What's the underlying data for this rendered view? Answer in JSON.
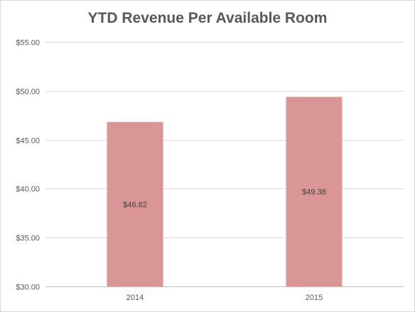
{
  "chart_data": {
    "type": "bar",
    "title": "YTD Revenue Per Available Room",
    "categories": [
      "2014",
      "2015"
    ],
    "values": [
      46.82,
      49.38
    ],
    "data_labels": [
      "$46.82",
      "$49.38"
    ],
    "y_ticks": [
      30,
      35,
      40,
      45,
      50,
      55
    ],
    "y_tick_labels": [
      "$30.00",
      "$35.00",
      "$40.00",
      "$45.00",
      "$50.00",
      "$55.00"
    ],
    "ylim": [
      30,
      55
    ],
    "xlabel": "",
    "ylabel": "",
    "grid": true,
    "legend": "none",
    "bar_color": "#d99694",
    "grid_color": "#d9d9d9",
    "text_color": "#595959"
  }
}
